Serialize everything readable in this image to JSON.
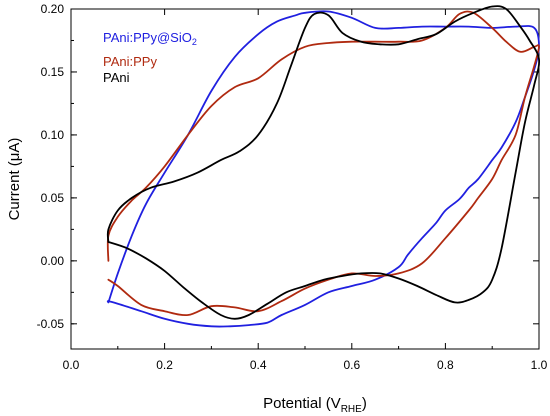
{
  "chart_data": {
    "type": "line",
    "title": "",
    "xlabel": "Potential (V",
    "xlabel_sub": "RHE",
    "xlabel_close": ")",
    "ylabel": "Current (μA)",
    "xlim": [
      0.0,
      1.0
    ],
    "ylim": [
      -0.07,
      0.2
    ],
    "x_ticks": [
      "0.0",
      "0.2",
      "0.4",
      "0.6",
      "0.8",
      "1.0"
    ],
    "y_ticks": [
      "-0.05",
      "0.00",
      "0.05",
      "0.10",
      "0.15",
      "0.20"
    ],
    "grid": false,
    "legend_position": "top-left",
    "series": [
      {
        "name": "PAni:PPy@SiO",
        "name_sub": "2",
        "color": "#2020e0",
        "x": [
          0.08,
          0.1,
          0.13,
          0.16,
          0.2,
          0.25,
          0.3,
          0.35,
          0.4,
          0.44,
          0.48,
          0.5,
          0.55,
          0.6,
          0.65,
          0.7,
          0.75,
          0.8,
          0.85,
          0.9,
          0.95,
          0.99,
          1.0,
          0.99,
          0.97,
          0.95,
          0.92,
          0.9,
          0.87,
          0.85,
          0.83,
          0.8,
          0.78,
          0.75,
          0.72,
          0.7,
          0.65,
          0.6,
          0.55,
          0.5,
          0.45,
          0.42,
          0.38,
          0.34,
          0.3,
          0.25,
          0.2,
          0.15,
          0.1,
          0.08,
          0.08
        ],
        "y": [
          -0.033,
          -0.01,
          0.02,
          0.045,
          0.07,
          0.1,
          0.135,
          0.162,
          0.18,
          0.19,
          0.195,
          0.197,
          0.198,
          0.193,
          0.185,
          0.185,
          0.186,
          0.186,
          0.186,
          0.185,
          0.186,
          0.185,
          0.17,
          0.152,
          0.13,
          0.11,
          0.09,
          0.08,
          0.065,
          0.058,
          0.049,
          0.04,
          0.03,
          0.018,
          0.005,
          -0.005,
          -0.015,
          -0.02,
          -0.025,
          -0.035,
          -0.043,
          -0.049,
          -0.051,
          -0.052,
          -0.052,
          -0.05,
          -0.046,
          -0.04,
          -0.034,
          -0.032,
          -0.033
        ]
      },
      {
        "name": "PAni:PPy",
        "color": "#b02a10",
        "x": [
          0.08,
          0.08,
          0.1,
          0.13,
          0.16,
          0.2,
          0.25,
          0.3,
          0.35,
          0.4,
          0.45,
          0.5,
          0.55,
          0.6,
          0.65,
          0.7,
          0.75,
          0.8,
          0.83,
          0.86,
          0.9,
          0.93,
          0.96,
          0.99,
          1.0,
          0.99,
          0.97,
          0.95,
          0.92,
          0.9,
          0.87,
          0.85,
          0.8,
          0.75,
          0.7,
          0.65,
          0.6,
          0.55,
          0.5,
          0.45,
          0.4,
          0.35,
          0.3,
          0.25,
          0.2,
          0.15,
          0.1,
          0.08
        ],
        "y": [
          0.0,
          0.02,
          0.035,
          0.048,
          0.058,
          0.075,
          0.1,
          0.123,
          0.138,
          0.145,
          0.16,
          0.17,
          0.173,
          0.174,
          0.174,
          0.174,
          0.175,
          0.185,
          0.196,
          0.197,
          0.185,
          0.174,
          0.166,
          0.17,
          0.17,
          0.155,
          0.13,
          0.1,
          0.08,
          0.065,
          0.05,
          0.04,
          0.018,
          -0.002,
          -0.01,
          -0.012,
          -0.01,
          -0.015,
          -0.022,
          -0.032,
          -0.04,
          -0.037,
          -0.036,
          -0.043,
          -0.04,
          -0.035,
          -0.02,
          -0.015
        ]
      },
      {
        "name": "PAni",
        "color": "#000000",
        "x": [
          0.08,
          0.08,
          0.1,
          0.13,
          0.17,
          0.22,
          0.27,
          0.32,
          0.36,
          0.4,
          0.44,
          0.47,
          0.5,
          0.52,
          0.55,
          0.58,
          0.62,
          0.66,
          0.7,
          0.74,
          0.78,
          0.82,
          0.86,
          0.9,
          0.93,
          0.96,
          0.98,
          1.0,
          0.99,
          0.97,
          0.95,
          0.92,
          0.9,
          0.88,
          0.85,
          0.82,
          0.78,
          0.74,
          0.7,
          0.66,
          0.62,
          0.58,
          0.54,
          0.5,
          0.46,
          0.42,
          0.38,
          0.35,
          0.32,
          0.28,
          0.24,
          0.2,
          0.16,
          0.12,
          0.08
        ],
        "y": [
          0.015,
          0.025,
          0.04,
          0.05,
          0.058,
          0.063,
          0.07,
          0.08,
          0.087,
          0.1,
          0.125,
          0.155,
          0.185,
          0.196,
          0.195,
          0.181,
          0.174,
          0.172,
          0.172,
          0.176,
          0.18,
          0.19,
          0.197,
          0.202,
          0.2,
          0.186,
          0.175,
          0.16,
          0.14,
          0.11,
          0.07,
          0.01,
          -0.015,
          -0.025,
          -0.031,
          -0.033,
          -0.027,
          -0.02,
          -0.014,
          -0.01,
          -0.01,
          -0.012,
          -0.015,
          -0.02,
          -0.025,
          -0.034,
          -0.043,
          -0.046,
          -0.043,
          -0.033,
          -0.021,
          -0.008,
          0.002,
          0.01,
          0.015
        ]
      }
    ]
  }
}
